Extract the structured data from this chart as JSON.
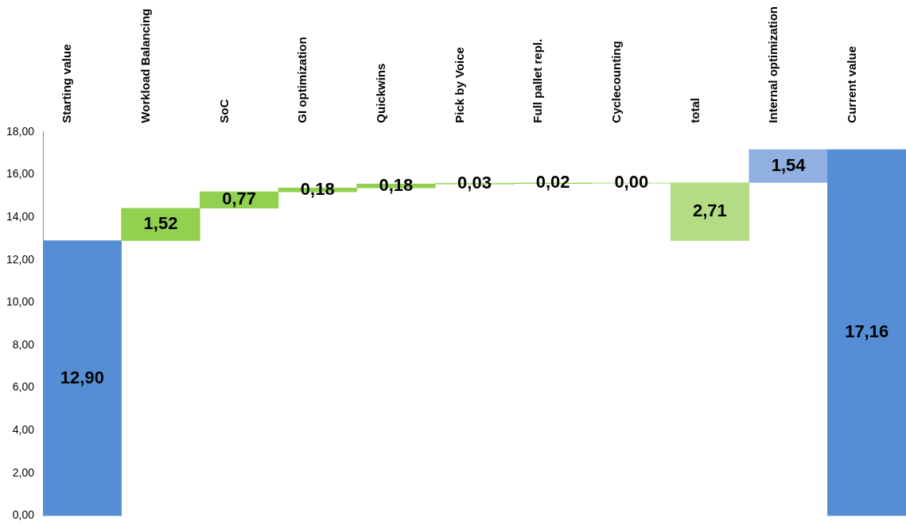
{
  "chart_data": {
    "type": "bar",
    "categories": [
      "Starting value",
      "Workload Balancing",
      "SoC",
      "GI optimization",
      "Quickwins",
      "Pick by Voice",
      "Full pallet repl.",
      "Cyclecounting",
      "total",
      "Internal optimization",
      "Current value"
    ],
    "values": [
      12.9,
      1.52,
      0.77,
      0.18,
      0.18,
      0.03,
      0.02,
      0.0,
      2.71,
      1.54,
      17.16
    ],
    "base": [
      0,
      12.9,
      14.42,
      15.19,
      15.37,
      15.55,
      15.58,
      15.6,
      12.9,
      15.62,
      0
    ],
    "colors": [
      "#558ed5",
      "#92d050",
      "#92d050",
      "#92d050",
      "#92d050",
      "#92d050",
      "#92d050",
      "#92d050",
      "#b3dc85",
      "#8fb0e0",
      "#558ed5"
    ],
    "value_labels": [
      "12,90",
      "1,52",
      "0,77",
      "0,18",
      "0,18",
      "0,03",
      "0,02",
      "0,00",
      "2,71",
      "1,54",
      "17,16"
    ],
    "ylim": [
      0,
      18
    ],
    "yticks": [
      {
        "value": 0,
        "label": "0,00"
      },
      {
        "value": 2,
        "label": "2,00"
      },
      {
        "value": 4,
        "label": "4,00"
      },
      {
        "value": 6,
        "label": "6,00"
      },
      {
        "value": 8,
        "label": "8,00"
      },
      {
        "value": 10,
        "label": "10,00"
      },
      {
        "value": 12,
        "label": "12,00"
      },
      {
        "value": 14,
        "label": "14,00"
      },
      {
        "value": 16,
        "label": "16,00"
      },
      {
        "value": 18,
        "label": "18,00"
      }
    ],
    "grid": false,
    "legend": false
  }
}
